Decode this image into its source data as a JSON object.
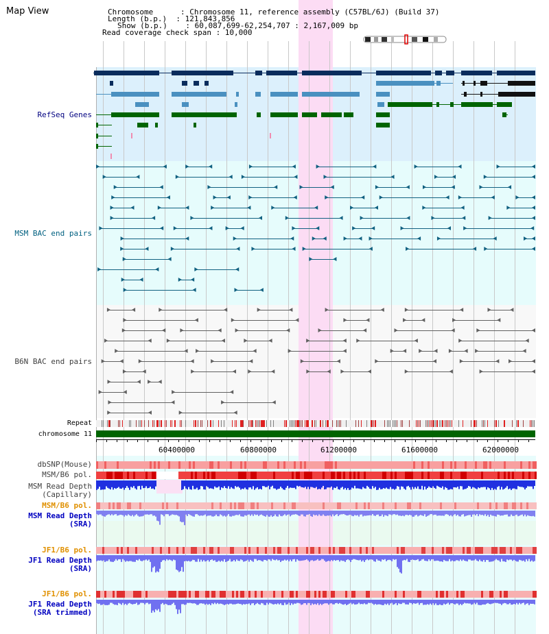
{
  "title": "Map View",
  "header": {
    "lines": [
      "Chromosome      : Chromosome 11, reference assembly (C57BL/6J) (Build 37)",
      "Length (b.p.)  : 121,843,856",
      "Show (b.p.)    : 60,087,699-62,254,707 : 2,167,009 bp",
      "Read coverage check span : 10,000"
    ]
  },
  "tracks": {
    "refseq": "RefSeq Genes",
    "msm_bac": "MSM BAC end pairs",
    "b6n_bac": "B6N BAC end pairs",
    "repeat": "Repeat",
    "chromosome": "chromosome 11",
    "dbsnp": "dbSNP(Mouse)",
    "msm_pol": "MSM/B6 pol.",
    "msm_depth_cap_1": "MSM Read Depth",
    "msm_depth_cap_2": "(Capillary)",
    "msm_pol_2": "MSM/B6 pol.",
    "msm_depth_sra_1": "MSM Read Depth",
    "msm_depth_sra_2": "(SRA)",
    "jf1_pol": "JF1/B6 pol.",
    "jf1_depth_1": "JF1 Read Depth",
    "jf1_depth_2": "(SRA)",
    "jf1_pol_2": "JF1/B6 pol.",
    "jf1_trim_1": "JF1 Read Depth",
    "jf1_trim_2": "(SRA trimmed)"
  },
  "ruler": {
    "ticks": [
      "60400000",
      "60800000",
      "61200000",
      "61600000",
      "62000000"
    ]
  },
  "colors": {
    "refseq_bg": "#dcf0fc",
    "msm_bg": "#e6fcfc",
    "b6n_bg": "#f8f8f8",
    "highlight": "#fcdcf4",
    "chromosome": "#006400",
    "refseq_dark": "#0a2c5c",
    "refseq_mid": "#4a90c0",
    "refseq_green": "#006400",
    "msm_line": "#106080",
    "b6n_line": "#606060",
    "label_refseq": "#000080",
    "label_msm": "#006080",
    "label_b6n": "#404040",
    "label_orange": "#e09000",
    "label_blue": "#0000c0"
  }
}
